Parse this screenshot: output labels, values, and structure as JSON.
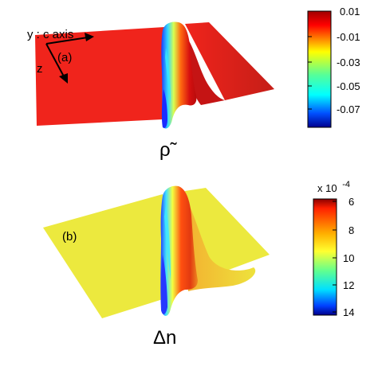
{
  "panel_a": {
    "label": "(a)",
    "axis_y_label": "y : c axis",
    "axis_z_label": "z",
    "symbol": "ρ̃",
    "colorbar": {
      "ticks": [
        "0.01",
        "-0.01",
        "-0.03",
        "-0.05",
        "-0.07"
      ],
      "scale": "jet",
      "top_color": "#c00000",
      "bottom_color": "#00008f"
    }
  },
  "panel_b": {
    "label": "(b)",
    "symbol": "Δn",
    "colorbar": {
      "multiplier": "x 10",
      "exponent": "-4",
      "ticks": [
        "6",
        "8",
        "10",
        "12",
        "14"
      ],
      "scale": "jet",
      "top_color": "#c00000",
      "bottom_color": "#00008f"
    }
  },
  "colors": {
    "surface_a": "#f0241c",
    "surface_b": "#ece93e"
  }
}
